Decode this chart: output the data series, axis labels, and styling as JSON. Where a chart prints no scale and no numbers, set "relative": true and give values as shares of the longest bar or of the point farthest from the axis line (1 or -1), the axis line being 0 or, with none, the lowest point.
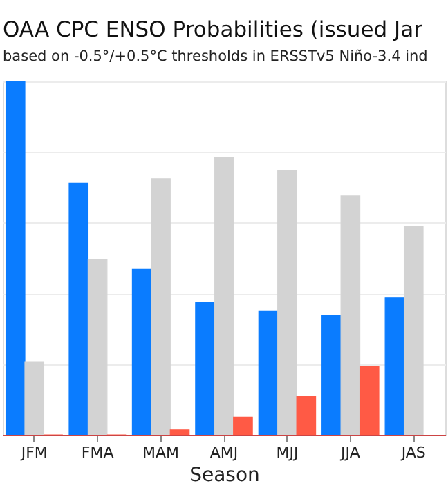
{
  "chart_data": {
    "type": "bar",
    "title": "OAA CPC ENSO Probabilities (issued Jar",
    "subtitle": "based on -0.5°/+0.5°C thresholds in ERSSTv5 Niño-3.4 ind",
    "xlabel": "Season",
    "relative": true,
    "grid": "y",
    "categories": [
      "JFM",
      "FMA",
      "MAM",
      "AMJ",
      "MJJ",
      "JJA",
      "JAS"
    ],
    "series": [
      {
        "color": "#0a7cff",
        "values": [
          1,
          0.712,
          0.468,
          0.374,
          0.351,
          0.338,
          0.387
        ]
      },
      {
        "color": "#d3d3d3",
        "values": [
          0.207,
          0.495,
          0.725,
          0.784,
          0.748,
          0.676,
          0.59
        ]
      },
      {
        "color": "#ff5a45",
        "values": [
          0,
          0,
          0.014,
          0.05,
          0.108,
          0.194,
          null
        ]
      }
    ]
  }
}
